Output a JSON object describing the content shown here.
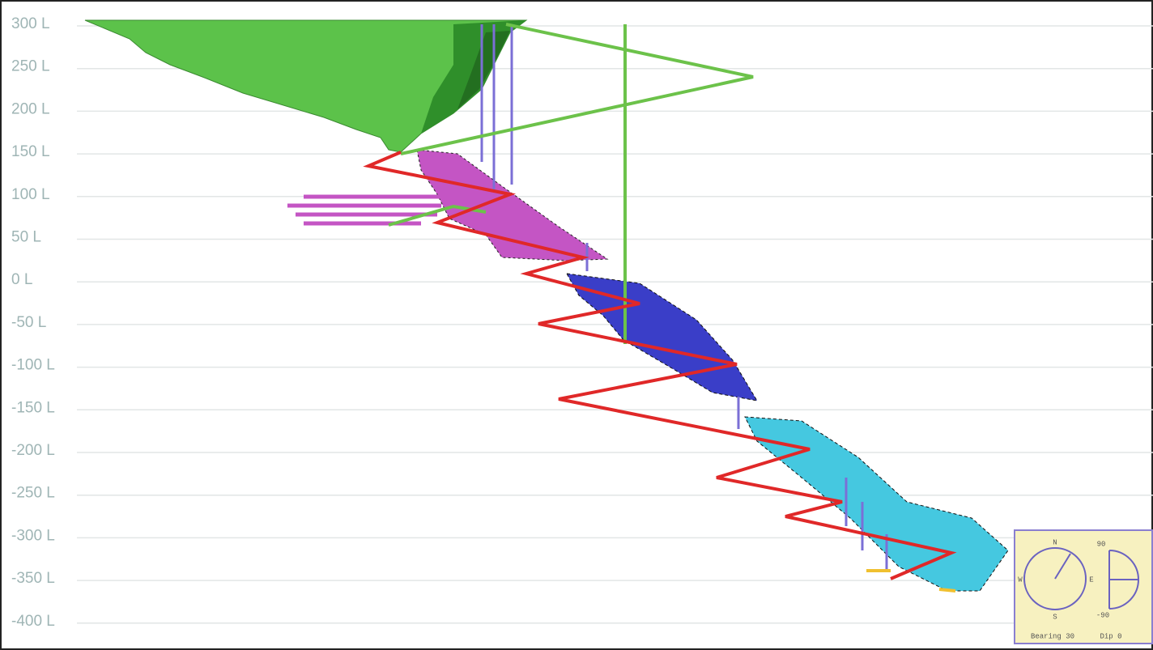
{
  "levels": [
    "300 L",
    "250 L",
    "200 L",
    "150 L",
    "100 L",
    "50 L",
    "0 L",
    "-50 L",
    "-100 L",
    "-150 L",
    "-200 L",
    "-250 L",
    "-300 L",
    "-350 L",
    "-400 L"
  ],
  "orientation": {
    "north": "N",
    "east": "E",
    "south": "S",
    "west": "W",
    "dip_top": "90",
    "dip_bottom": "-90",
    "bearing": "Bearing 30",
    "dip": "Dip 0"
  }
}
